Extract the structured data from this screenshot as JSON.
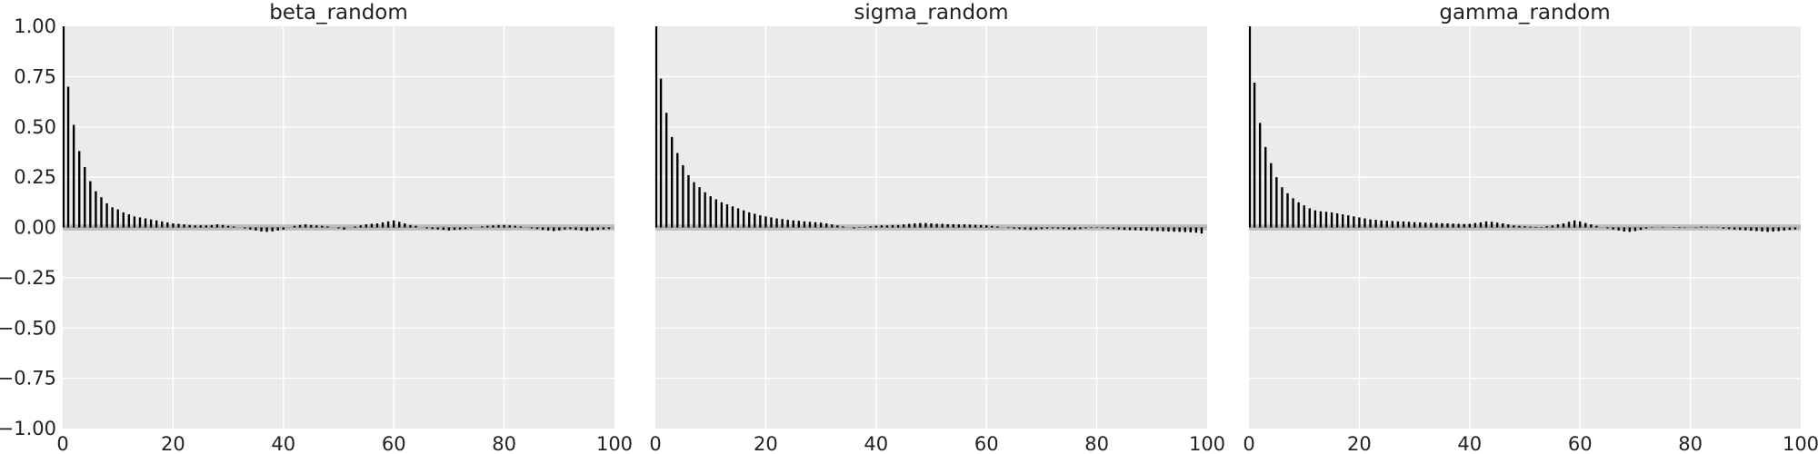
{
  "figure": {
    "background": "#ffffff",
    "panel_background": "#ebebeb",
    "bar_color": "#000000",
    "band_color": "#bdbdbd"
  },
  "chart_data": [
    {
      "type": "bar",
      "title": "beta_random",
      "xlim": [
        0,
        100
      ],
      "ylim": [
        -1.0,
        1.0
      ],
      "x_ticks": [
        0,
        20,
        40,
        60,
        80,
        100
      ],
      "x_tick_labels": [
        "0",
        "20",
        "40",
        "60",
        "80",
        "100"
      ],
      "y_ticks": [
        1.0,
        0.75,
        0.5,
        0.25,
        0.0,
        -0.25,
        -0.5,
        -0.75,
        -1.0
      ],
      "y_tick_labels": [
        "1.00",
        "0.75",
        "0.50",
        "0.25",
        "0.00",
        "−0.25",
        "−0.50",
        "−0.75",
        "−1.00"
      ],
      "grid": true,
      "confidence_band": 0.015,
      "x": [
        0,
        1,
        2,
        3,
        4,
        5,
        6,
        7,
        8,
        9,
        10,
        11,
        12,
        13,
        14,
        15,
        16,
        17,
        18,
        19,
        20,
        21,
        22,
        23,
        24,
        25,
        26,
        27,
        28,
        29,
        30,
        31,
        32,
        33,
        34,
        35,
        36,
        37,
        38,
        39,
        40,
        41,
        42,
        43,
        44,
        45,
        46,
        47,
        48,
        49,
        50,
        51,
        52,
        53,
        54,
        55,
        56,
        57,
        58,
        59,
        60,
        61,
        62,
        63,
        64,
        65,
        66,
        67,
        68,
        69,
        70,
        71,
        72,
        73,
        74,
        75,
        76,
        77,
        78,
        79,
        80,
        81,
        82,
        83,
        84,
        85,
        86,
        87,
        88,
        89,
        90,
        91,
        92,
        93,
        94,
        95,
        96,
        97,
        98,
        99
      ],
      "values": [
        1.0,
        0.7,
        0.51,
        0.38,
        0.3,
        0.23,
        0.18,
        0.15,
        0.12,
        0.1,
        0.09,
        0.075,
        0.065,
        0.055,
        0.05,
        0.045,
        0.04,
        0.035,
        0.03,
        0.025,
        0.02,
        0.018,
        0.015,
        0.012,
        0.01,
        0.01,
        0.01,
        0.012,
        0.015,
        0.012,
        0.008,
        0.005,
        0.0,
        -0.005,
        -0.01,
        -0.015,
        -0.02,
        -0.022,
        -0.02,
        -0.015,
        -0.01,
        0.0,
        0.008,
        0.012,
        0.015,
        0.012,
        0.01,
        0.008,
        0.005,
        0.0,
        -0.005,
        -0.01,
        0.0,
        0.005,
        0.01,
        0.015,
        0.018,
        0.02,
        0.025,
        0.03,
        0.035,
        0.028,
        0.02,
        0.012,
        0.008,
        0.0,
        -0.005,
        -0.008,
        -0.01,
        -0.012,
        -0.015,
        -0.012,
        -0.01,
        -0.008,
        -0.005,
        0.0,
        0.005,
        0.008,
        0.01,
        0.012,
        0.012,
        0.01,
        0.008,
        0.005,
        0.0,
        -0.005,
        -0.008,
        -0.012,
        -0.015,
        -0.018,
        -0.015,
        -0.01,
        -0.008,
        -0.012,
        -0.015,
        -0.018,
        -0.015,
        -0.012,
        -0.01,
        -0.008
      ]
    },
    {
      "type": "bar",
      "title": "sigma_random",
      "xlim": [
        0,
        100
      ],
      "ylim": [
        -1.0,
        1.0
      ],
      "x_ticks": [
        0,
        20,
        40,
        60,
        80,
        100
      ],
      "x_tick_labels": [
        "0",
        "20",
        "40",
        "60",
        "80",
        "100"
      ],
      "grid": true,
      "confidence_band": 0.015,
      "x": [
        0,
        1,
        2,
        3,
        4,
        5,
        6,
        7,
        8,
        9,
        10,
        11,
        12,
        13,
        14,
        15,
        16,
        17,
        18,
        19,
        20,
        21,
        22,
        23,
        24,
        25,
        26,
        27,
        28,
        29,
        30,
        31,
        32,
        33,
        34,
        35,
        36,
        37,
        38,
        39,
        40,
        41,
        42,
        43,
        44,
        45,
        46,
        47,
        48,
        49,
        50,
        51,
        52,
        53,
        54,
        55,
        56,
        57,
        58,
        59,
        60,
        61,
        62,
        63,
        64,
        65,
        66,
        67,
        68,
        69,
        70,
        71,
        72,
        73,
        74,
        75,
        76,
        77,
        78,
        79,
        80,
        81,
        82,
        83,
        84,
        85,
        86,
        87,
        88,
        89,
        90,
        91,
        92,
        93,
        94,
        95,
        96,
        97,
        98,
        99
      ],
      "values": [
        1.0,
        0.74,
        0.57,
        0.45,
        0.37,
        0.31,
        0.26,
        0.225,
        0.2,
        0.175,
        0.155,
        0.14,
        0.125,
        0.115,
        0.105,
        0.095,
        0.085,
        0.075,
        0.068,
        0.06,
        0.055,
        0.05,
        0.045,
        0.042,
        0.038,
        0.035,
        0.033,
        0.03,
        0.028,
        0.026,
        0.024,
        0.02,
        0.015,
        0.01,
        0.005,
        0.0,
        -0.005,
        -0.002,
        0.003,
        0.006,
        0.008,
        0.01,
        0.01,
        0.012,
        0.012,
        0.015,
        0.018,
        0.02,
        0.022,
        0.022,
        0.02,
        0.018,
        0.018,
        0.016,
        0.016,
        0.015,
        0.015,
        0.014,
        0.013,
        0.012,
        0.01,
        0.008,
        0.005,
        0.0,
        -0.003,
        -0.006,
        -0.008,
        -0.01,
        -0.012,
        -0.01,
        -0.008,
        -0.006,
        -0.005,
        -0.006,
        -0.008,
        -0.01,
        -0.01,
        -0.008,
        -0.005,
        -0.003,
        -0.002,
        -0.004,
        -0.006,
        -0.008,
        -0.01,
        -0.012,
        -0.013,
        -0.014,
        -0.015,
        -0.016,
        -0.017,
        -0.018,
        -0.019,
        -0.02,
        -0.021,
        -0.022,
        -0.023,
        -0.024,
        -0.026,
        -0.03
      ]
    },
    {
      "type": "bar",
      "title": "gamma_random",
      "xlim": [
        0,
        100
      ],
      "ylim": [
        -1.0,
        1.0
      ],
      "x_ticks": [
        0,
        20,
        40,
        60,
        80,
        100
      ],
      "x_tick_labels": [
        "0",
        "20",
        "40",
        "60",
        "80",
        "100"
      ],
      "grid": true,
      "confidence_band": 0.015,
      "x": [
        0,
        1,
        2,
        3,
        4,
        5,
        6,
        7,
        8,
        9,
        10,
        11,
        12,
        13,
        14,
        15,
        16,
        17,
        18,
        19,
        20,
        21,
        22,
        23,
        24,
        25,
        26,
        27,
        28,
        29,
        30,
        31,
        32,
        33,
        34,
        35,
        36,
        37,
        38,
        39,
        40,
        41,
        42,
        43,
        44,
        45,
        46,
        47,
        48,
        49,
        50,
        51,
        52,
        53,
        54,
        55,
        56,
        57,
        58,
        59,
        60,
        61,
        62,
        63,
        64,
        65,
        66,
        67,
        68,
        69,
        70,
        71,
        72,
        73,
        74,
        75,
        76,
        77,
        78,
        79,
        80,
        81,
        82,
        83,
        84,
        85,
        86,
        87,
        88,
        89,
        90,
        91,
        92,
        93,
        94,
        95,
        96,
        97,
        98,
        99
      ],
      "values": [
        1.0,
        0.72,
        0.52,
        0.4,
        0.32,
        0.25,
        0.2,
        0.17,
        0.145,
        0.125,
        0.11,
        0.095,
        0.085,
        0.08,
        0.078,
        0.075,
        0.07,
        0.065,
        0.06,
        0.055,
        0.05,
        0.045,
        0.04,
        0.038,
        0.035,
        0.033,
        0.032,
        0.03,
        0.03,
        0.028,
        0.026,
        0.025,
        0.024,
        0.023,
        0.022,
        0.021,
        0.02,
        0.019,
        0.018,
        0.017,
        0.018,
        0.022,
        0.025,
        0.03,
        0.028,
        0.024,
        0.02,
        0.015,
        0.01,
        0.008,
        0.006,
        0.004,
        0.003,
        0.002,
        0.006,
        0.01,
        0.015,
        0.02,
        0.028,
        0.035,
        0.03,
        0.022,
        0.015,
        0.008,
        0.0,
        -0.005,
        -0.01,
        -0.015,
        -0.02,
        -0.022,
        -0.018,
        -0.012,
        -0.006,
        -0.002,
        0.0,
        0.002,
        0.0,
        -0.002,
        -0.003,
        -0.002,
        0.0,
        0.002,
        0.004,
        0.003,
        0.001,
        -0.002,
        -0.006,
        -0.008,
        -0.01,
        -0.012,
        -0.014,
        -0.016,
        -0.018,
        -0.02,
        -0.022,
        -0.02,
        -0.018,
        -0.015,
        -0.012,
        -0.01
      ]
    }
  ]
}
